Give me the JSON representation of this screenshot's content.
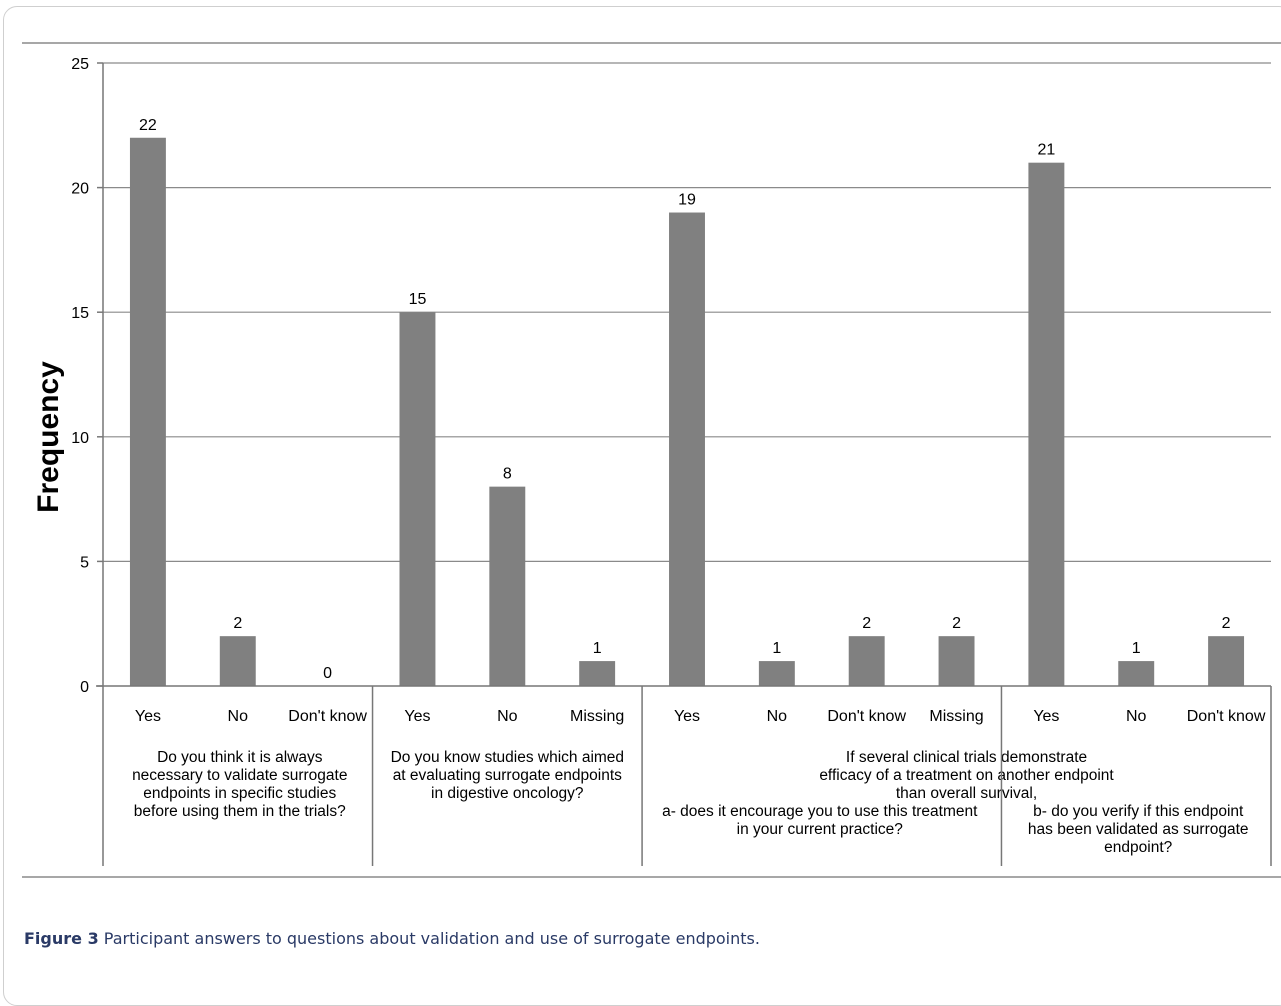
{
  "chart_data": {
    "type": "bar",
    "title": "",
    "xlabel": "",
    "ylabel": "Frequency",
    "ylim": [
      0,
      25
    ],
    "yticks": [
      0,
      5,
      10,
      15,
      20,
      25
    ],
    "grid": true,
    "bar_color": "#808080",
    "groups": [
      {
        "question": [
          "Do you think it is always",
          "necessary to validate surrogate",
          "endpoints in specific studies",
          "before using them in the trials?"
        ],
        "categories": [
          "Yes",
          "No",
          "Don't know"
        ],
        "values": [
          22,
          2,
          0
        ]
      },
      {
        "question": [
          "Do you know studies which aimed",
          "at evaluating surrogate endpoints",
          "in digestive oncology?"
        ],
        "categories": [
          "Yes",
          "No",
          "Missing"
        ],
        "values": [
          15,
          8,
          1
        ]
      },
      {
        "question": [
          "a- does it encourage you to use this treatment",
          "in your current practice?"
        ],
        "categories": [
          "Yes",
          "No",
          "Don't know",
          "Missing"
        ],
        "values": [
          19,
          1,
          2,
          2
        ]
      },
      {
        "question": [
          "b- do you verify if this endpoint",
          "has been validated as surrogate",
          "endpoint?"
        ],
        "categories": [
          "Yes",
          "No",
          "Don't know"
        ],
        "values": [
          21,
          1,
          2
        ]
      }
    ],
    "shared_question": [
      "If several clinical trials demonstrate",
      "efficacy of a treatment on another endpoint",
      "than overall survival,"
    ]
  },
  "caption": {
    "label": "Figure 3",
    "text": " Participant answers to questions about validation and use of surrogate endpoints",
    "end": "."
  }
}
